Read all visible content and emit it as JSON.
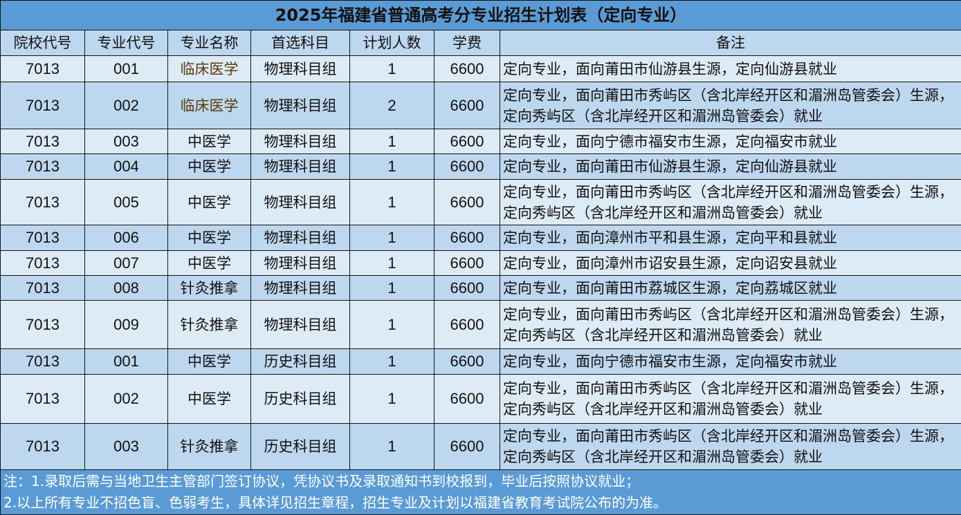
{
  "title": "2025年福建省普通高考分专业招生计划表（定向专业）",
  "headers": [
    "院校代号",
    "专业代号",
    "专业名称",
    "首选科目",
    "计划人数",
    "学费",
    "备注"
  ],
  "rows": [
    [
      "7013",
      "001",
      "临床医学",
      "物理科目组",
      "1",
      "6600",
      "定向专业，面向莆田市仙游县生源，定向仙游县就业"
    ],
    [
      "7013",
      "002",
      "临床医学",
      "物理科目组",
      "2",
      "6600",
      "定向专业，面向莆田市秀屿区（含北岸经开区和湄洲岛管委会）生源，定向秀屿区（含北岸经开区和湄洲岛管委会）就业"
    ],
    [
      "7013",
      "003",
      "中医学",
      "物理科目组",
      "1",
      "6600",
      "定向专业，面向宁德市福安市生源，定向福安市就业"
    ],
    [
      "7013",
      "004",
      "中医学",
      "物理科目组",
      "1",
      "6600",
      "定向专业，面向莆田市仙游县生源，定向仙游县就业"
    ],
    [
      "7013",
      "005",
      "中医学",
      "物理科目组",
      "1",
      "6600",
      "定向专业，面向莆田市秀屿区（含北岸经开区和湄洲岛管委会）生源，定向秀屿区（含北岸经开区和湄洲岛管委会）就业"
    ],
    [
      "7013",
      "006",
      "中医学",
      "物理科目组",
      "1",
      "6600",
      "定向专业，面向漳州市平和县生源，定向平和县就业"
    ],
    [
      "7013",
      "007",
      "中医学",
      "物理科目组",
      "1",
      "6600",
      "定向专业，面向漳州市诏安县生源，定向诏安县就业"
    ],
    [
      "7013",
      "008",
      "针灸推拿",
      "物理科目组",
      "1",
      "6600",
      "定向专业，面向莆田市荔城区生源，定向荔城区就业"
    ],
    [
      "7013",
      "009",
      "针灸推拿",
      "物理科目组",
      "1",
      "6600",
      "定向专业，面向莆田市秀屿区（含北岸经开区和湄洲岛管委会）生源，定向秀屿区（含北岸经开区和湄洲岛管委会）就业"
    ],
    [
      "7013",
      "001",
      "中医学",
      "历史科目组",
      "1",
      "6600",
      "定向专业，面向宁德市福安市生源，定向福安市就业"
    ],
    [
      "7013",
      "002",
      "中医学",
      "历史科目组",
      "1",
      "6600",
      "定向专业，面向莆田市秀屿区（含北岸经开区和湄洲岛管委会）生源，定向秀屿区（含北岸经开区和湄洲岛管委会）就业"
    ],
    [
      "7013",
      "003",
      "针灸推拿",
      "历史科目组",
      "1",
      "6600",
      "定向专业，面向莆田市秀屿区（含北岸经开区和湄洲岛管委会）生源，定向秀屿区（含北岸经开区和湄洲岛管委会）就业"
    ]
  ],
  "footer": [
    "注：1.录取后需与当地卫生主管部门签订协议，凭协议书及录取通知书到校报到，毕业后按照协议就业；",
    "2.以上所有专业不招色盲、色弱考生，具体详见招生章程，招生专业及计划以福建省教育考试院公布的为准。"
  ],
  "colors": {
    "title_bg": "#5b9bd5",
    "header_bg": "#bdd7ee",
    "row_light": "#ddebf7",
    "row_dark": "#bdd7ee",
    "footer_text": "#ffffff"
  }
}
